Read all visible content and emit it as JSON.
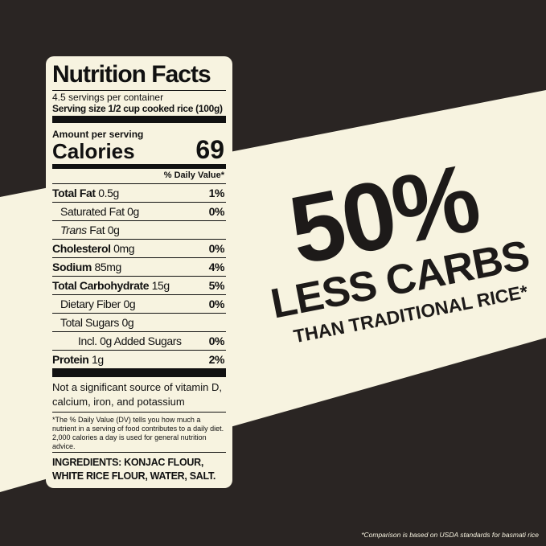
{
  "headline": {
    "big": "50%",
    "middle": "LESS CARBS",
    "small": "THAN TRADITIONAL RICE*"
  },
  "footnote": "*Comparison is based on USDA standards for basmati rice",
  "label": {
    "title": "Nutrition Facts",
    "servings": "4.5 servings per container",
    "serving_size": "Serving size 1/2 cup cooked rice (100g)",
    "amount_per_serving": "Amount per serving",
    "calories_label": "Calories",
    "calories": "69",
    "dv_header": "% Daily Value*",
    "rows": [
      {
        "name": "Total Fat",
        "amount": "0.5g",
        "dv": "1%",
        "bold": true,
        "indent": 0
      },
      {
        "name": "Saturated Fat",
        "amount": "0g",
        "dv": "0%",
        "bold": false,
        "indent": 1
      },
      {
        "name": "Trans",
        "amount": "Fat 0g",
        "italic": true,
        "bold": false,
        "indent": 1
      },
      {
        "name": "Cholesterol",
        "amount": "0mg",
        "dv": "0%",
        "bold": true,
        "indent": 0
      },
      {
        "name": "Sodium",
        "amount": "85mg",
        "dv": "4%",
        "bold": true,
        "indent": 0
      },
      {
        "name": "Total Carbohydrate",
        "amount": "15g",
        "dv": "5%",
        "bold": true,
        "indent": 0
      },
      {
        "name": "Dietary Fiber",
        "amount": "0g",
        "dv": "0%",
        "bold": false,
        "indent": 1
      },
      {
        "name": "Total Sugars",
        "amount": "0g",
        "bold": false,
        "indent": 1
      },
      {
        "name": "Incl. 0g Added Sugars",
        "dv": "0%",
        "bold": false,
        "indent": 2
      },
      {
        "name": "Protein",
        "amount": "1g",
        "dv": "2%",
        "bold": true,
        "indent": 0
      }
    ],
    "vitamin_note": "Not a significant source of vitamin D, calcium, iron, and potassium",
    "dv_note": "*The % Daily Value (DV) tells you how much a nutrient in a serving of food contributes to a daily diet. 2,000 calories a day is used for general nutrition advice.",
    "ingredients": "INGREDIENTS: KONJAC FLOUR, WHITE RICE FLOUR, WATER, SALT."
  }
}
